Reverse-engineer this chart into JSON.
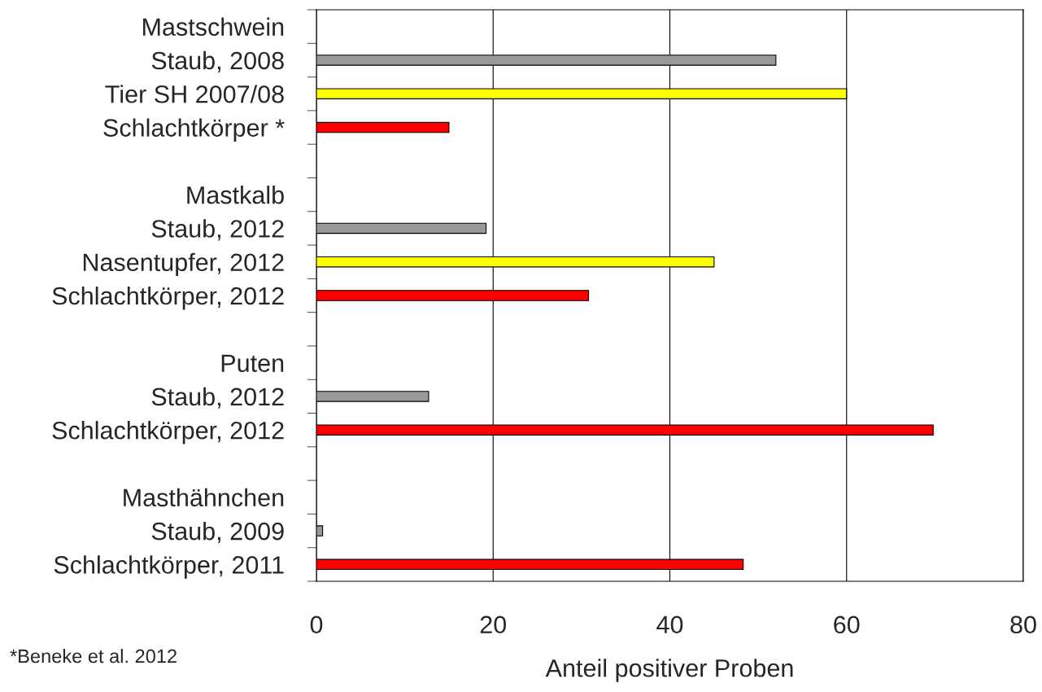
{
  "chart_data": {
    "type": "bar",
    "orientation": "horizontal",
    "xlabel": "Anteil positiver Proben",
    "categories": [
      "Mastschwein",
      "Staub, 2008",
      "Tier SH 2007/08",
      "Schlachtkörper *",
      null,
      "Mastkalb",
      "Staub, 2012",
      "Nasentupfer, 2012",
      "Schlachtkörper, 2012",
      null,
      "Puten",
      "Staub, 2012",
      "Schlachtkörper, 2012",
      null,
      "Masthähnchen",
      "Staub, 2009",
      "Schlachtkörper, 2011"
    ],
    "values": [
      null,
      52,
      60,
      15,
      null,
      null,
      19.2,
      45,
      30.8,
      null,
      null,
      12.7,
      69.8,
      null,
      null,
      0.7,
      48.3
    ],
    "colors": [
      "#999999",
      "#999999",
      "#ffff00",
      "#ff0000",
      "#999999",
      "#999999",
      "#999999",
      "#ffff00",
      "#ff0000",
      "#999999",
      "#999999",
      "#999999",
      "#ff0000",
      "#999999",
      "#999999",
      "#999999",
      "#ff0000"
    ],
    "xlim": [
      0,
      80
    ],
    "xticks": [
      0,
      20,
      40,
      60,
      80
    ],
    "grid": "x",
    "annotations": [
      "*Beneke et al. 2012"
    ]
  }
}
